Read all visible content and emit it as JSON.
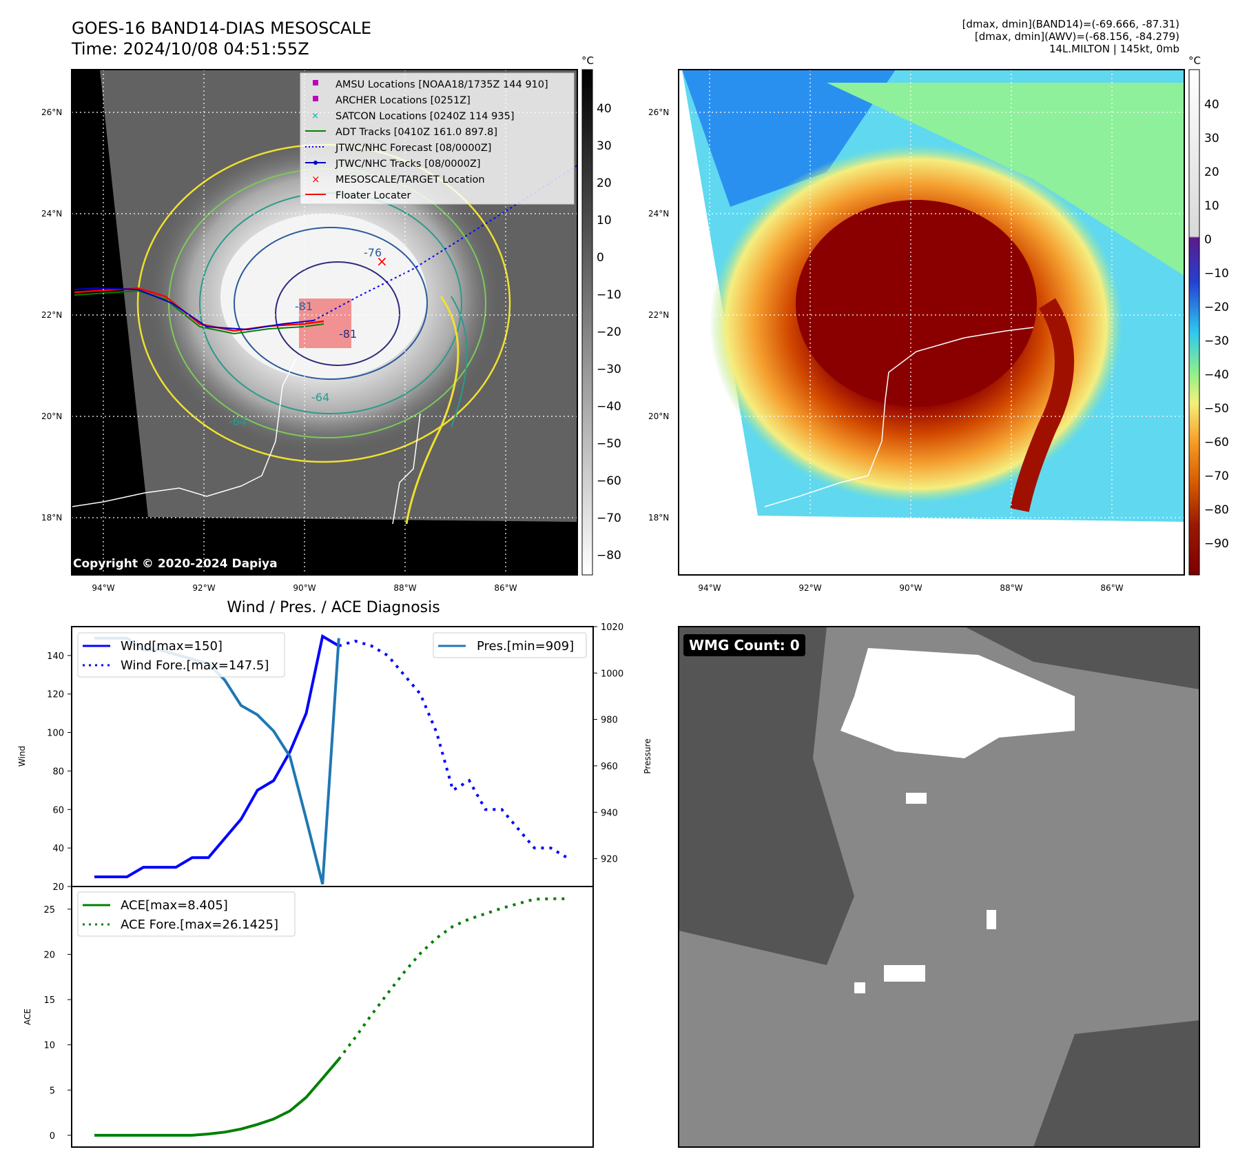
{
  "header": {
    "title_line1": "GOES-16 BAND14-DIAS MESOSCALE",
    "title_line2": "Time: 2024/10/08 04:51:55Z",
    "info_line1": "[dmax, dmin](BAND14)=(-69.666, -87.31)",
    "info_line2": "[dmax, dmin](AWV)=(-68.156, -84.279)",
    "info_line3": "14L.MILTON | 145kt, 0mb"
  },
  "maps": {
    "lat_labels": [
      "26°N",
      "24°N",
      "22°N",
      "20°N",
      "18°N"
    ],
    "lon_labels": [
      "94°W",
      "92°W",
      "90°W",
      "88°W",
      "86°W"
    ],
    "copyright": "Copyright © 2020-2024 Dapiya",
    "contour_labels": [
      "-76",
      "-81",
      "-81",
      "-64",
      "-64"
    ],
    "legend": [
      "AMSU Locations [NOAA18/1735Z 144 910]",
      "ARCHER Locations [0251Z]",
      "SATCON Locations [0240Z 114 935]",
      "ADT Tracks [0410Z 161.0 897.8]",
      "JTWC/NHC Forecast [08/0000Z]",
      "JTWC/NHC Tracks [08/0000Z]",
      "MESOSCALE/TARGET Location",
      "Floater Locater"
    ],
    "gray_colorbar": {
      "unit": "°C",
      "ticks": [
        "40",
        "30",
        "20",
        "10",
        "0",
        "−10",
        "−20",
        "−30",
        "−40",
        "−50",
        "−60",
        "−70",
        "−80"
      ]
    },
    "color_colorbar": {
      "unit": "°C",
      "ticks": [
        "40",
        "30",
        "20",
        "10",
        "0",
        "−10",
        "−20",
        "−30",
        "−40",
        "−50",
        "−60",
        "−70",
        "−80",
        "−90"
      ]
    }
  },
  "wmg": {
    "badge": "WMG Count: 0"
  },
  "chart_data": [
    {
      "type": "line",
      "title": "Wind / Pres. / ACE Diagnosis",
      "ylabel": "Wind",
      "ylabel_right": "Pressure",
      "ylim": [
        20,
        155
      ],
      "ylim_right": [
        908,
        1020
      ],
      "yticks": [
        "140",
        "120",
        "100",
        "80",
        "60",
        "40",
        "20"
      ],
      "yticks_right": [
        "1020",
        "1000",
        "980",
        "960",
        "940",
        "920"
      ],
      "x": [
        0,
        1,
        2,
        3,
        4,
        5,
        6,
        7,
        8,
        9,
        10,
        11,
        12,
        13,
        14,
        15,
        16,
        17,
        18,
        19,
        20,
        21,
        22,
        23,
        24,
        25,
        26,
        27,
        28,
        29,
        30,
        31,
        32,
        33,
        34,
        35,
        36,
        37,
        38
      ],
      "series": [
        {
          "name": "Wind[max=150]",
          "color": "#0000ff",
          "style": "solid",
          "points": [
            [
              0,
              25
            ],
            [
              1,
              25
            ],
            [
              2,
              25
            ],
            [
              3,
              30
            ],
            [
              4,
              30
            ],
            [
              5,
              30
            ],
            [
              6,
              35
            ],
            [
              7,
              35
            ],
            [
              8,
              45
            ],
            [
              9,
              55
            ],
            [
              10,
              70
            ],
            [
              11,
              75
            ],
            [
              12,
              90
            ],
            [
              13,
              110
            ],
            [
              14,
              150
            ],
            [
              15,
              145
            ]
          ]
        },
        {
          "name": "Wind Fore.[max=147.5]",
          "color": "#0000ff",
          "style": "dotted",
          "points": [
            [
              15,
              145
            ],
            [
              16,
              147.5
            ],
            [
              17,
              145
            ],
            [
              18,
              140
            ],
            [
              19,
              130
            ],
            [
              20,
              120
            ],
            [
              21,
              100
            ],
            [
              22,
              70
            ],
            [
              23,
              75
            ],
            [
              24,
              60
            ],
            [
              25,
              60
            ],
            [
              26,
              50
            ],
            [
              27,
              40
            ],
            [
              28,
              40
            ],
            [
              29,
              35
            ]
          ]
        },
        {
          "name": "Pres.[min=909]",
          "color": "#1f77b4",
          "style": "solid",
          "axis": "right",
          "points": [
            [
              0,
              1015
            ],
            [
              1,
              1015
            ],
            [
              2,
              1015
            ],
            [
              3,
              1010
            ],
            [
              4,
              1010
            ],
            [
              5,
              1008
            ],
            [
              6,
              1006
            ],
            [
              7,
              1004
            ],
            [
              8,
              997
            ],
            [
              9,
              986
            ],
            [
              10,
              982
            ],
            [
              11,
              975
            ],
            [
              12,
              964
            ],
            [
              13,
              937
            ],
            [
              14,
              909
            ],
            [
              15,
              1015
            ]
          ]
        }
      ]
    },
    {
      "type": "line",
      "ylabel": "ACE",
      "ylim": [
        -1.3,
        27.5
      ],
      "yticks": [
        "25",
        "20",
        "15",
        "10",
        "5",
        "0"
      ],
      "series": [
        {
          "name": "ACE[max=8.405]",
          "color": "#008000",
          "style": "solid",
          "points": [
            [
              0,
              0
            ],
            [
              2,
              0
            ],
            [
              4,
              0
            ],
            [
              6,
              0
            ],
            [
              7,
              0.15
            ],
            [
              8,
              0.35
            ],
            [
              9,
              0.7
            ],
            [
              10,
              1.2
            ],
            [
              11,
              1.8
            ],
            [
              12,
              2.7
            ],
            [
              13,
              4.2
            ],
            [
              14,
              6.3
            ],
            [
              15,
              8.405
            ]
          ]
        },
        {
          "name": "ACE Fore.[max=26.1425]",
          "color": "#008000",
          "style": "dotted",
          "points": [
            [
              15,
              8.405
            ],
            [
              16,
              10.8
            ],
            [
              17,
              13.3
            ],
            [
              18,
              15.7
            ],
            [
              19,
              18.0
            ],
            [
              20,
              20.1
            ],
            [
              21,
              21.8
            ],
            [
              22,
              23.1
            ],
            [
              23,
              23.9
            ],
            [
              24,
              24.5
            ],
            [
              25,
              25.1
            ],
            [
              26,
              25.6
            ],
            [
              27,
              26.1
            ],
            [
              28,
              26.1425
            ],
            [
              29,
              26.1425
            ]
          ]
        }
      ]
    }
  ]
}
